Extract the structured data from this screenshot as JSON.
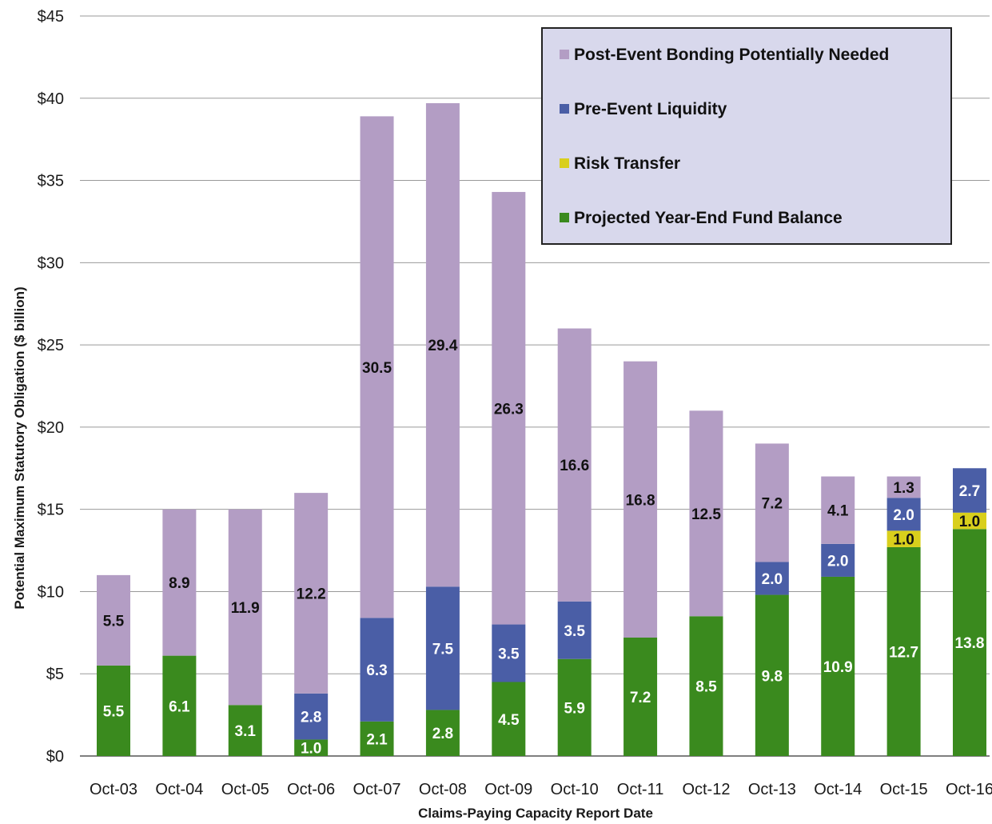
{
  "chart_data": {
    "type": "bar",
    "stacked": true,
    "xlabel": "Claims-Paying Capacity Report Date",
    "ylabel": "Potential Maximum Statutory Obligation ($ billion)",
    "ylim": [
      0,
      45
    ],
    "yticks": [
      "$0",
      "$5",
      "$10",
      "$15",
      "$20",
      "$25",
      "$30",
      "$35",
      "$40",
      "$45"
    ],
    "grid": true,
    "legend_position": "top-right",
    "categories": [
      "Oct-03",
      "Oct-04",
      "Oct-05",
      "Oct-06",
      "Oct-07",
      "Oct-08",
      "Oct-09",
      "Oct-10",
      "Oct-11",
      "Oct-12",
      "Oct-13",
      "Oct-14",
      "Oct-15",
      "Oct-16"
    ],
    "series": [
      {
        "name": "Projected Year-End Fund Balance",
        "color": "#3a8a1e",
        "label_color": "#ffffff",
        "values": [
          5.5,
          6.1,
          3.1,
          1.0,
          2.1,
          2.8,
          4.5,
          5.9,
          7.2,
          8.5,
          9.8,
          10.9,
          12.7,
          13.8
        ]
      },
      {
        "name": "Risk Transfer",
        "color": "#d9cf1c",
        "label_color": "#111111",
        "values": [
          null,
          null,
          null,
          null,
          null,
          null,
          null,
          null,
          null,
          null,
          null,
          null,
          1.0,
          1.0
        ]
      },
      {
        "name": "Pre-Event Liquidity",
        "color": "#4a5ea6",
        "label_color": "#ffffff",
        "values": [
          null,
          null,
          null,
          2.8,
          6.3,
          7.5,
          3.5,
          3.5,
          null,
          null,
          2.0,
          2.0,
          2.0,
          2.7
        ]
      },
      {
        "name": "Post-Event Bonding Potentially Needed",
        "color": "#b39dc4",
        "label_color": "#111111",
        "values": [
          5.5,
          8.9,
          11.9,
          12.2,
          30.5,
          29.4,
          26.3,
          16.6,
          16.8,
          12.5,
          7.2,
          4.1,
          1.3,
          null
        ]
      }
    ],
    "legend_order": [
      "Post-Event Bonding Potentially Needed",
      "Pre-Event Liquidity",
      "Risk Transfer",
      "Projected Year-End Fund Balance"
    ]
  }
}
